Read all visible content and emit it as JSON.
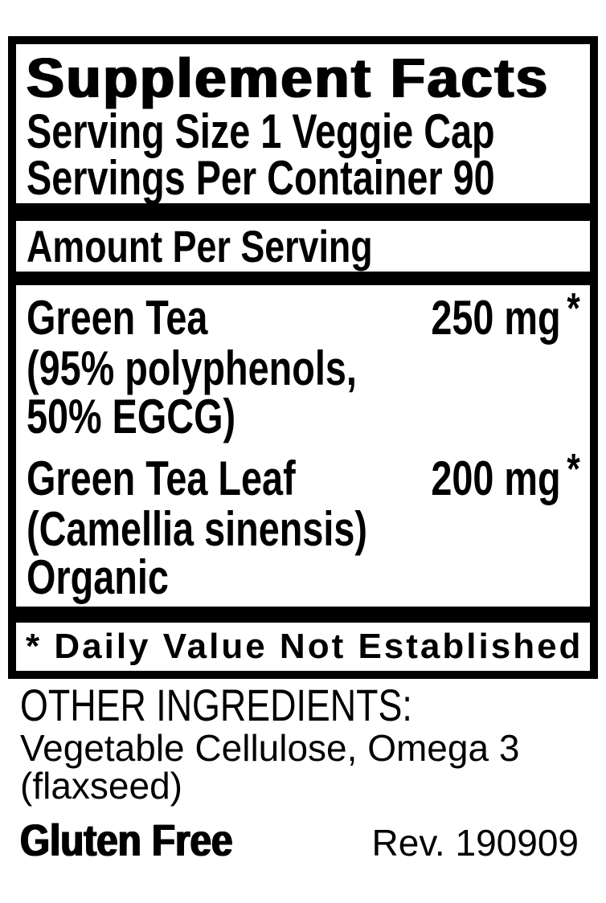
{
  "panel": {
    "title": "Supplement Facts",
    "serving_size": "Serving Size 1 Veggie Cap",
    "servings_per_container": "Servings Per Container 90",
    "amount_per_serving_header": "Amount Per Serving",
    "ingredients": [
      {
        "name": "Green Tea",
        "amount": "250 mg",
        "daily_value_symbol": "*",
        "details": [
          "(95% polyphenols,",
          "50% EGCG)"
        ]
      },
      {
        "name": "Green Tea Leaf",
        "amount": "200 mg",
        "daily_value_symbol": "*",
        "details": [
          "(Camellia sinensis)",
          "Organic"
        ]
      }
    ],
    "footnote": "* Daily Value Not Established"
  },
  "other_ingredients": {
    "heading": "OTHER INGREDIENTS:",
    "lines": [
      "Vegetable Cellulose, Omega 3",
      "(flaxseed)"
    ]
  },
  "gluten_free": "Gluten Free",
  "revision": "Rev. 190909",
  "colors": {
    "ink": "#000000",
    "paper": "#ffffff"
  }
}
